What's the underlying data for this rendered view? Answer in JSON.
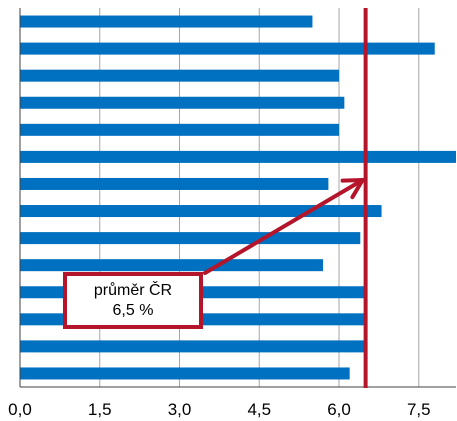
{
  "chart_data": {
    "type": "bar",
    "orientation": "horizontal",
    "xlim": [
      0,
      8.2
    ],
    "x_ticks": [
      "0,0",
      "1,5",
      "3,0",
      "4,5",
      "6,0",
      "7,5"
    ],
    "x_tick_values": [
      0,
      1.5,
      3.0,
      4.5,
      6.0,
      7.5
    ],
    "grid": true,
    "values": [
      5.5,
      7.8,
      6.0,
      6.1,
      6.0,
      8.2,
      5.8,
      6.8,
      6.4,
      5.7,
      6.5,
      6.5,
      6.5,
      6.2
    ],
    "reference_line": {
      "value": 6.5
    },
    "annotation": {
      "line1": "průměr ČR",
      "line2": "6,5 %"
    }
  },
  "colors": {
    "bar": "#0070c0",
    "reference": "#b5152b",
    "grid": "#a6a6a6",
    "axis": "#404040"
  }
}
